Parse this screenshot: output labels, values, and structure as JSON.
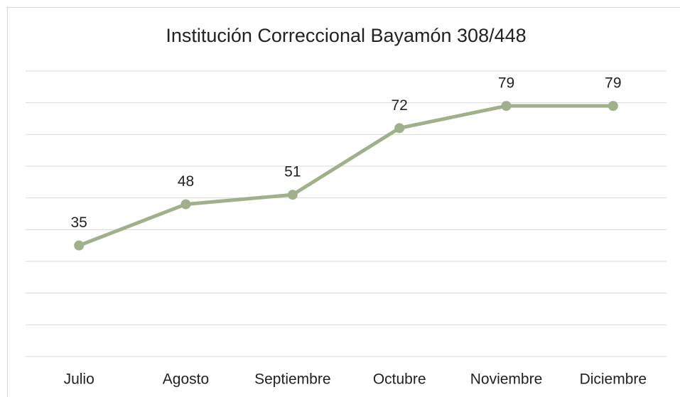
{
  "chart_data": {
    "type": "line",
    "title": "Institución Correccional Bayamón 308/448",
    "categories": [
      "Julio",
      "Agosto",
      "Septiembre",
      "Octubre",
      "Noviembre",
      "Diciembre"
    ],
    "values": [
      35,
      48,
      51,
      72,
      79,
      79
    ],
    "color": "#9fb08b",
    "ylim": [
      0,
      90
    ],
    "yticks": [
      0,
      10,
      20,
      30,
      40,
      50,
      60,
      70,
      80,
      90
    ],
    "grid": true
  }
}
